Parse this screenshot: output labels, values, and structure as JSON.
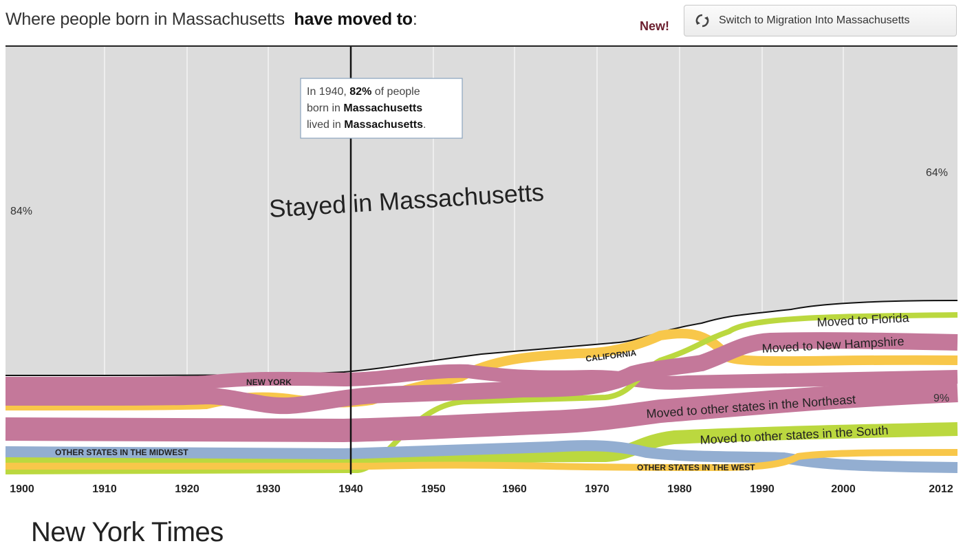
{
  "header": {
    "title_plain": "Where people born in Massachusetts",
    "title_bold": "have moved to",
    "title_suffix": ":",
    "new_label": "New!",
    "switch_button_label": "Switch to Migration Into Massachusetts",
    "switch_icon": "refresh-icon"
  },
  "tooltip": {
    "year": "1940",
    "line1_pre": "In 1940, ",
    "line1_bold": "82%",
    "line1_post": " of people",
    "line2_pre": "born in ",
    "line2_bold": "Massachusetts",
    "line3_pre": "lived in ",
    "line3_bold": "Massachusetts",
    "line3_post": "."
  },
  "footer": {
    "credit": "New York Times"
  },
  "colors": {
    "stayed": "#dcdcdc",
    "new_york": "#c4789a",
    "northeast": "#c4789a",
    "new_hampshire": "#c4789a",
    "california": "#f8c74a",
    "florida": "#bbd83f",
    "south": "#bbd83f",
    "midwest": "#93aed1",
    "west": "#f8c74a",
    "grid": "#ffffff",
    "cursor": "#111111"
  },
  "chart_data": {
    "type": "area",
    "title": "Where people born in Massachusetts have moved to:",
    "x_ticks": [
      "1900",
      "1910",
      "1920",
      "1930",
      "1940",
      "1950",
      "1960",
      "1970",
      "1980",
      "1990",
      "2000",
      "2012"
    ],
    "x": [
      1900,
      1910,
      1920,
      1930,
      1940,
      1950,
      1960,
      1970,
      1980,
      1990,
      2000,
      2012
    ],
    "stayed_label": "Stayed in Massachusetts",
    "stayed_start_label": "84%",
    "stayed_end_label": "64%",
    "northeast_end_label": "9%",
    "highlight_year": 1940,
    "series": [
      {
        "name": "Stayed in Massachusetts",
        "values": [
          84,
          84,
          84,
          83,
          82,
          80,
          78,
          76,
          72,
          68,
          66,
          64
        ]
      },
      {
        "name": "NEW YORK",
        "values": [
          3,
          3,
          3,
          3,
          3,
          3,
          3,
          3,
          2,
          2,
          2,
          2
        ]
      },
      {
        "name": "CALIFORNIA",
        "values": [
          0.5,
          0.5,
          0.5,
          1,
          1,
          2,
          3,
          3,
          4,
          3,
          3,
          3
        ]
      },
      {
        "name": "Moved to Florida",
        "values": [
          0,
          0,
          0,
          0,
          0.5,
          1,
          1,
          1,
          2,
          3,
          3,
          4
        ]
      },
      {
        "name": "Moved to New Hampshire",
        "values": [
          1,
          1,
          1,
          1,
          1,
          1,
          1,
          1,
          2,
          3,
          3,
          3
        ]
      },
      {
        "name": "Moved to other states in the Northeast",
        "values": [
          7,
          7,
          7,
          7,
          7,
          7,
          7,
          8,
          8,
          9,
          9,
          9
        ]
      },
      {
        "name": "Moved to other states in the South",
        "values": [
          0.3,
          0.3,
          0.3,
          0.3,
          0.5,
          1,
          1,
          2,
          2,
          3,
          3,
          3
        ]
      },
      {
        "name": "OTHER STATES IN THE MIDWEST",
        "values": [
          2,
          2,
          2,
          2,
          2,
          2,
          2,
          2,
          2,
          2,
          1.5,
          1.5
        ]
      },
      {
        "name": "OTHER STATES IN THE WEST",
        "values": [
          0.5,
          0.5,
          0.5,
          0.5,
          0.5,
          1,
          1,
          1,
          1,
          1,
          2,
          2
        ]
      }
    ]
  }
}
